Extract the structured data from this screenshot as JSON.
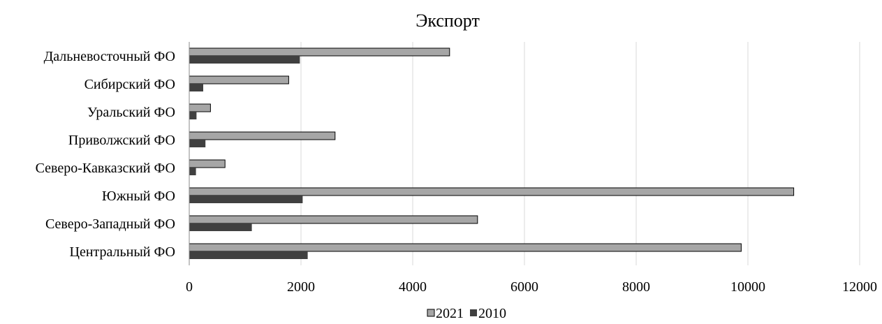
{
  "chart_data": {
    "type": "bar",
    "orientation": "horizontal",
    "title": "Экспорт",
    "xlabel": "",
    "ylabel": "",
    "categories": [
      "Центральный ФО",
      "Северо-Западный ФО",
      "Южный ФО",
      "Северо-Кавказский ФО",
      "Приволжский ФО",
      "Уральский ФО",
      "Сибирский ФО",
      "Дальневосточный ФО"
    ],
    "series": [
      {
        "name": "2021",
        "color": "#a6a6a6",
        "values": [
          9880,
          5160,
          10820,
          640,
          2610,
          380,
          1780,
          4660
        ]
      },
      {
        "name": "2010",
        "color": "#404040",
        "values": [
          2120,
          1120,
          2030,
          120,
          290,
          130,
          250,
          1980
        ]
      }
    ],
    "xlim": [
      0,
      12000
    ],
    "xticks": [
      "0",
      "2000",
      "4000",
      "6000",
      "8000",
      "10000",
      "12000"
    ],
    "grid": "vertical",
    "legend": "bottom"
  }
}
